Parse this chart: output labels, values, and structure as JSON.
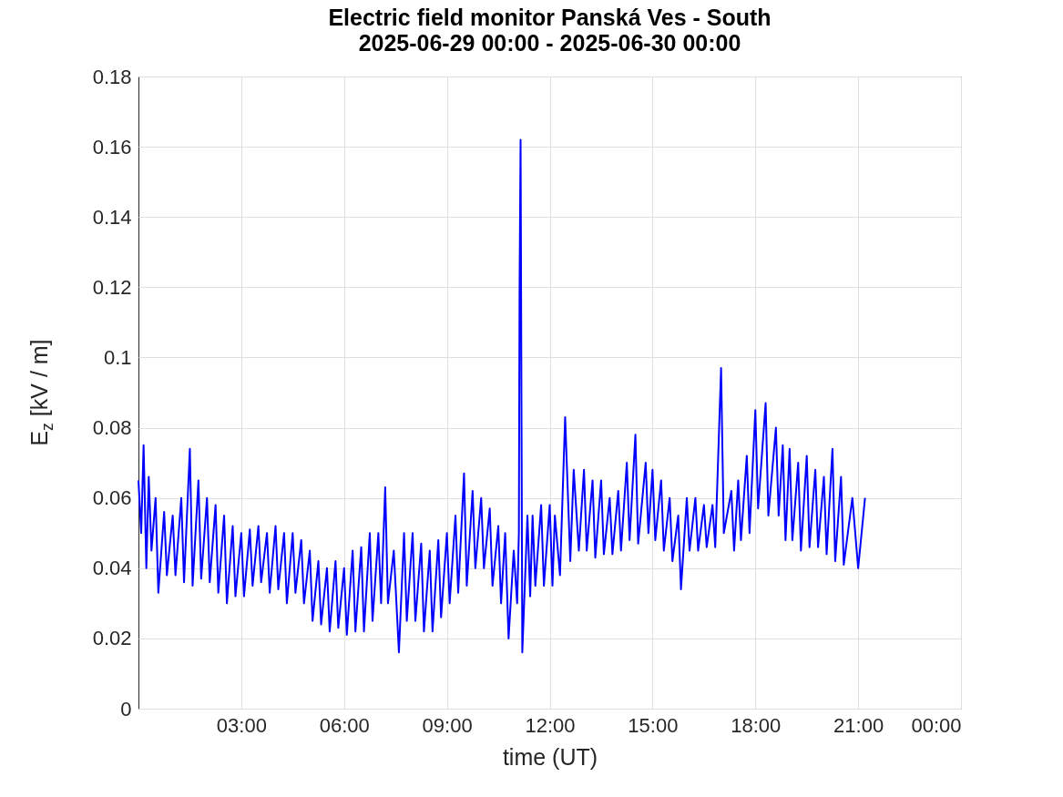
{
  "chart_data": {
    "type": "line",
    "title": "Electric field monitor Panská Ves - South",
    "subtitle": "2025-06-29 00:00 - 2025-06-30 00:00",
    "xlabel": "time (UT)",
    "ylabel": "E$_{z}$ [kV / m]",
    "x": [
      0,
      0.08,
      0.15,
      0.23,
      0.3,
      0.38,
      0.5,
      0.58,
      0.75,
      0.83,
      1.0,
      1.08,
      1.25,
      1.33,
      1.5,
      1.58,
      1.75,
      1.83,
      2.0,
      2.08,
      2.25,
      2.33,
      2.5,
      2.58,
      2.75,
      2.83,
      3.0,
      3.08,
      3.25,
      3.33,
      3.5,
      3.58,
      3.75,
      3.83,
      4.0,
      4.08,
      4.25,
      4.33,
      4.5,
      4.58,
      4.75,
      4.83,
      5.0,
      5.08,
      5.25,
      5.33,
      5.5,
      5.58,
      5.75,
      5.83,
      6.0,
      6.08,
      6.25,
      6.33,
      6.5,
      6.58,
      6.75,
      6.83,
      7.0,
      7.08,
      7.2,
      7.28,
      7.45,
      7.6,
      7.75,
      7.83,
      8.0,
      8.08,
      8.25,
      8.33,
      8.5,
      8.58,
      8.75,
      8.83,
      9.0,
      9.08,
      9.25,
      9.33,
      9.5,
      9.58,
      9.75,
      9.83,
      10.0,
      10.08,
      10.25,
      10.33,
      10.5,
      10.58,
      10.7,
      10.8,
      10.95,
      11.05,
      11.1,
      11.12,
      11.15,
      11.2,
      11.35,
      11.43,
      11.5,
      11.58,
      11.75,
      11.83,
      12.0,
      12.08,
      12.15,
      12.3,
      12.45,
      12.6,
      12.7,
      12.85,
      13.0,
      13.08,
      13.25,
      13.33,
      13.5,
      13.58,
      13.75,
      13.83,
      14.0,
      14.08,
      14.25,
      14.33,
      14.5,
      14.58,
      14.8,
      14.88,
      15.0,
      15.08,
      15.25,
      15.33,
      15.5,
      15.58,
      15.75,
      15.83,
      16.0,
      16.08,
      16.25,
      16.33,
      16.5,
      16.58,
      16.75,
      16.83,
      17.0,
      17.08,
      17.3,
      17.38,
      17.5,
      17.58,
      17.75,
      17.83,
      18.0,
      18.08,
      18.3,
      18.38,
      18.6,
      18.68,
      18.8,
      18.88,
      19.0,
      19.08,
      19.25,
      19.33,
      19.5,
      19.58,
      19.75,
      19.83,
      20.0,
      20.08,
      20.25,
      20.33,
      20.5,
      20.58,
      20.83,
      21.0,
      21.2
    ],
    "series": [
      {
        "color": "#0000ff",
        "values": [
          0.065,
          0.05,
          0.075,
          0.04,
          0.066,
          0.045,
          0.06,
          0.033,
          0.056,
          0.038,
          0.055,
          0.038,
          0.06,
          0.036,
          0.074,
          0.035,
          0.065,
          0.037,
          0.06,
          0.036,
          0.058,
          0.033,
          0.055,
          0.03,
          0.052,
          0.032,
          0.05,
          0.032,
          0.051,
          0.035,
          0.052,
          0.036,
          0.05,
          0.033,
          0.052,
          0.034,
          0.05,
          0.03,
          0.05,
          0.033,
          0.048,
          0.03,
          0.045,
          0.025,
          0.042,
          0.024,
          0.04,
          0.022,
          0.042,
          0.023,
          0.04,
          0.021,
          0.045,
          0.022,
          0.046,
          0.022,
          0.05,
          0.025,
          0.05,
          0.03,
          0.063,
          0.03,
          0.045,
          0.016,
          0.05,
          0.025,
          0.05,
          0.025,
          0.047,
          0.022,
          0.045,
          0.022,
          0.048,
          0.026,
          0.05,
          0.03,
          0.055,
          0.033,
          0.067,
          0.035,
          0.062,
          0.04,
          0.06,
          0.04,
          0.057,
          0.035,
          0.052,
          0.03,
          0.05,
          0.02,
          0.045,
          0.03,
          0.05,
          0.119,
          0.162,
          0.016,
          0.055,
          0.032,
          0.055,
          0.035,
          0.058,
          0.035,
          0.058,
          0.035,
          0.055,
          0.038,
          0.083,
          0.042,
          0.068,
          0.045,
          0.068,
          0.045,
          0.065,
          0.043,
          0.065,
          0.044,
          0.06,
          0.044,
          0.062,
          0.045,
          0.07,
          0.048,
          0.078,
          0.047,
          0.07,
          0.05,
          0.068,
          0.048,
          0.065,
          0.045,
          0.06,
          0.042,
          0.055,
          0.034,
          0.06,
          0.045,
          0.06,
          0.045,
          0.058,
          0.046,
          0.058,
          0.046,
          0.097,
          0.05,
          0.062,
          0.045,
          0.065,
          0.048,
          0.072,
          0.05,
          0.085,
          0.057,
          0.087,
          0.055,
          0.08,
          0.055,
          0.075,
          0.048,
          0.074,
          0.048,
          0.07,
          0.045,
          0.072,
          0.046,
          0.068,
          0.046,
          0.066,
          0.044,
          0.074,
          0.042,
          0.066,
          0.041,
          0.06,
          0.04,
          0.06
        ]
      }
    ],
    "xlim": [
      0,
      24
    ],
    "xticks": [
      {
        "value": 3,
        "label": "03:00"
      },
      {
        "value": 6,
        "label": "06:00"
      },
      {
        "value": 9,
        "label": "09:00"
      },
      {
        "value": 12,
        "label": "12:00"
      },
      {
        "value": 15,
        "label": "15:00"
      },
      {
        "value": 18,
        "label": "18:00"
      },
      {
        "value": 21,
        "label": "21:00"
      },
      {
        "value": 24,
        "label": "00:00"
      }
    ],
    "ylim": [
      0,
      0.18
    ],
    "yticks": [
      0,
      0.02,
      0.04,
      0.06,
      0.08,
      0.1,
      0.12,
      0.14,
      0.16,
      0.18
    ],
    "grid": true,
    "line_style": "solid"
  }
}
